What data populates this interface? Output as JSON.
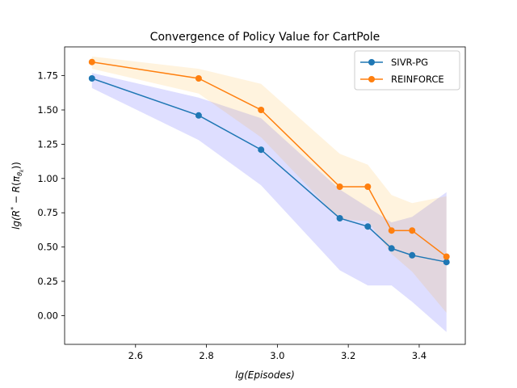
{
  "chart_data": {
    "type": "line",
    "title": "Convergence of Policy Value for CartPole",
    "xlabel": "lg(Episodes)",
    "ylabel": "lg(R* − R(π_θk))",
    "ylabel_parts": {
      "pre": "lg(",
      "R": "R",
      "star": "*",
      "minus": " − ",
      "R2": "R",
      "open": "(",
      "pi": "π",
      "theta": "θ",
      "k": "k",
      "close": "))"
    },
    "xlim": [
      2.4,
      3.53
    ],
    "ylim": [
      -0.21,
      1.96
    ],
    "xticks": [
      "2.6",
      "2.8",
      "3.0",
      "3.2",
      "3.4"
    ],
    "xtick_values": [
      2.6,
      2.8,
      3.0,
      3.2,
      3.4
    ],
    "yticks": [
      "0.00",
      "0.25",
      "0.50",
      "0.75",
      "1.00",
      "1.25",
      "1.50",
      "1.75"
    ],
    "ytick_values": [
      0.0,
      0.25,
      0.5,
      0.75,
      1.0,
      1.25,
      1.5,
      1.75
    ],
    "legend_position": "top-right",
    "series": [
      {
        "name": "SIVR-PG",
        "color": "#1f77b4",
        "band_color": "#0000ff",
        "x": [
          2.477,
          2.778,
          2.954,
          3.176,
          3.255,
          3.322,
          3.38,
          3.477
        ],
        "values": [
          1.73,
          1.46,
          1.21,
          0.71,
          0.65,
          0.49,
          0.44,
          0.39
        ],
        "lower": [
          1.66,
          1.28,
          0.95,
          0.33,
          0.22,
          0.22,
          0.1,
          -0.12
        ],
        "upper": [
          1.77,
          1.59,
          1.44,
          0.92,
          0.79,
          0.68,
          0.72,
          0.9
        ]
      },
      {
        "name": "REINFORCE",
        "color": "#ff7f0e",
        "band_color": "#ffa500",
        "x": [
          2.477,
          2.778,
          2.954,
          3.176,
          3.255,
          3.322,
          3.38,
          3.477
        ],
        "values": [
          1.85,
          1.73,
          1.5,
          0.94,
          0.94,
          0.62,
          0.62,
          0.43
        ],
        "lower": [
          1.8,
          1.62,
          1.3,
          0.7,
          0.69,
          0.45,
          0.32,
          0.02
        ],
        "upper": [
          1.89,
          1.8,
          1.69,
          1.18,
          1.1,
          0.88,
          0.82,
          0.87
        ]
      }
    ]
  }
}
